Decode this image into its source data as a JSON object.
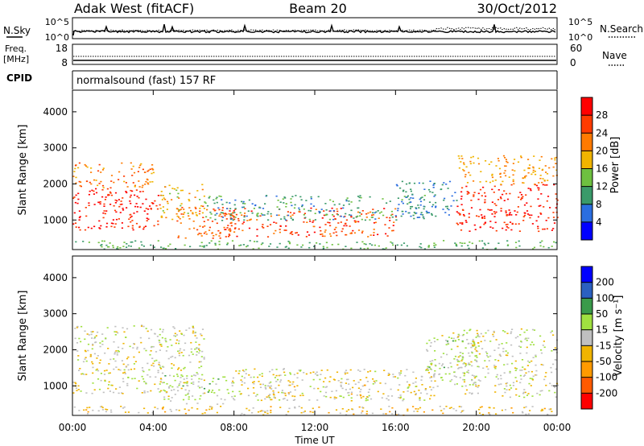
{
  "header": {
    "site": "Adak West (fitACF)",
    "beam": "Beam 20",
    "date": "30/Oct/2012"
  },
  "panels": {
    "nsky": {
      "label": "N.Sky",
      "right_label": "N.Search",
      "left_ticks": [
        "10^5",
        "10^0"
      ],
      "right_ticks": [
        "10^5",
        "10^0"
      ]
    },
    "freq": {
      "label_line1": "Freq.",
      "label_line2": "[MHz]",
      "right_label": "Nave",
      "left_ticks": [
        "18",
        "8"
      ],
      "right_ticks": [
        "60",
        "0"
      ]
    },
    "cpid": {
      "label": "CPID",
      "text": "normalsound (fast) 157 RF"
    }
  },
  "colors": {
    "power": [
      "#0000ff",
      "#2b6ee0",
      "#3a9a6a",
      "#6ec040",
      "#f0b400",
      "#ff7a00",
      "#ff3b00",
      "#ff0000"
    ],
    "velocity": [
      "#ff0000",
      "#ff5a00",
      "#ff9a00",
      "#f0b400",
      "#c0c0c0",
      "#a0e040",
      "#3a9a4a",
      "#2b60c0",
      "#0000ff"
    ]
  },
  "chart_data": [
    {
      "type": "heatmap",
      "panel": "power",
      "ylabel": "Slant Range [km]",
      "yticks": [
        1000,
        2000,
        3000,
        4000
      ],
      "ylim": [
        180,
        4600
      ],
      "xlim": [
        "00:00",
        "24:00"
      ],
      "colorbar": {
        "label": "Power [dB]",
        "ticks": [
          "28",
          "24",
          "20",
          "16",
          "12",
          "8",
          "4"
        ],
        "range": [
          0,
          32
        ]
      },
      "regions": [
        {
          "t": [
            0.0,
            4.3
          ],
          "r": [
            700,
            1900
          ],
          "level": 28
        },
        {
          "t": [
            0.0,
            4.0
          ],
          "r": [
            1900,
            2600
          ],
          "level": 22
        },
        {
          "t": [
            4.3,
            6.5
          ],
          "r": [
            1000,
            2000
          ],
          "level": 18
        },
        {
          "t": [
            5.0,
            8.0
          ],
          "r": [
            500,
            1400
          ],
          "level": 24
        },
        {
          "t": [
            7.5,
            16.0
          ],
          "r": [
            550,
            1350
          ],
          "level": 26
        },
        {
          "t": [
            6.5,
            17.5
          ],
          "r": [
            1000,
            1700
          ],
          "level": 10
        },
        {
          "t": [
            16.0,
            19.0
          ],
          "r": [
            1100,
            2100
          ],
          "level": 8
        },
        {
          "t": [
            19.0,
            24.0
          ],
          "r": [
            700,
            2000
          ],
          "level": 28
        },
        {
          "t": [
            19.0,
            24.0
          ],
          "r": [
            2000,
            2800
          ],
          "level": 20
        },
        {
          "t": [
            0.0,
            24.0
          ],
          "r": [
            200,
            450
          ],
          "level": 12
        }
      ]
    },
    {
      "type": "heatmap",
      "panel": "velocity",
      "ylabel": "Slant Range [km]",
      "yticks": [
        1000,
        2000,
        3000,
        4000
      ],
      "ylim": [
        180,
        4600
      ],
      "xlim": [
        "00:00",
        "24:00"
      ],
      "xlabel": "Time UT",
      "xticks": [
        "00:00",
        "04:00",
        "08:00",
        "12:00",
        "16:00",
        "20:00",
        "00:00"
      ],
      "colorbar": {
        "label": "Velocity [m s⁻¹]",
        "ticks": [
          "200",
          "100",
          "50",
          "15",
          "-15",
          "-50",
          "-100",
          "-200"
        ],
        "range": [
          -250,
          250
        ]
      },
      "regions": [
        {
          "t": [
            0.0,
            6.5
          ],
          "r": [
            800,
            2700
          ],
          "level": 0
        },
        {
          "t": [
            4.5,
            8.0
          ],
          "r": [
            500,
            1300
          ],
          "level": 30
        },
        {
          "t": [
            8.0,
            18.0
          ],
          "r": [
            600,
            1500
          ],
          "level": -5
        },
        {
          "t": [
            9.5,
            11.0
          ],
          "r": [
            600,
            1200
          ],
          "level": -30
        },
        {
          "t": [
            13.5,
            15.0
          ],
          "r": [
            700,
            1200
          ],
          "level": -30
        },
        {
          "t": [
            17.5,
            20.0
          ],
          "r": [
            1000,
            2500
          ],
          "level": 30
        },
        {
          "t": [
            19.0,
            24.0
          ],
          "r": [
            700,
            2600
          ],
          "level": 0
        },
        {
          "t": [
            0.0,
            24.0
          ],
          "r": [
            200,
            450
          ],
          "level": -40
        }
      ]
    }
  ]
}
